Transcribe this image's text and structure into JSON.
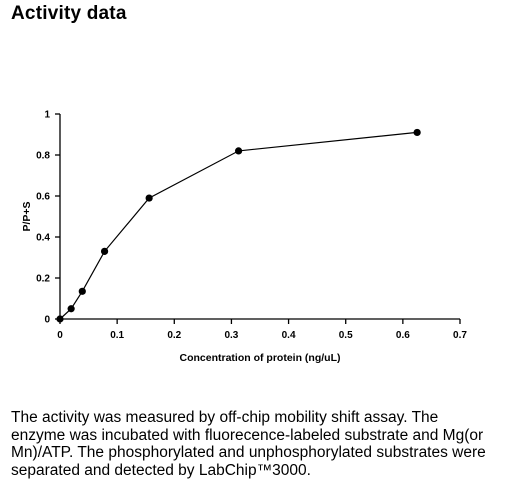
{
  "page": {
    "title": "Activity data",
    "caption": "The activity was measured by off-chip mobility shift assay. The\nenzyme was incubated with fluorecence-labeled  substrate and Mg(or\nMn)/ATP. The phosphorylated and unphosphorylated substrates were\nseparated and detected by LabChip™3000."
  },
  "chart_data": {
    "type": "line",
    "title": "",
    "xlabel": "Concentration of protein (ng/uL)",
    "ylabel": "P/P+S",
    "xlim": [
      0,
      0.7
    ],
    "ylim": [
      0,
      1
    ],
    "x_ticks": [
      0,
      0.1,
      0.2,
      0.3,
      0.4,
      0.5,
      0.6,
      0.7
    ],
    "x_tick_labels": [
      "0",
      "0.1",
      "0.2",
      "0.3",
      "0.4",
      "0.5",
      "0.6",
      "0.7"
    ],
    "y_ticks": [
      0,
      0.2,
      0.4,
      0.6,
      0.8,
      1
    ],
    "y_tick_labels": [
      "0",
      "0.2",
      "0.4",
      "0.6",
      "0.8",
      "1"
    ],
    "grid": false,
    "legend": "none",
    "series": [
      {
        "x": [
          0,
          0.0195,
          0.039,
          0.078,
          0.156,
          0.3125,
          0.625
        ],
        "y": [
          0,
          0.05,
          0.135,
          0.33,
          0.59,
          0.82,
          0.91
        ]
      }
    ],
    "color": "#000000"
  }
}
